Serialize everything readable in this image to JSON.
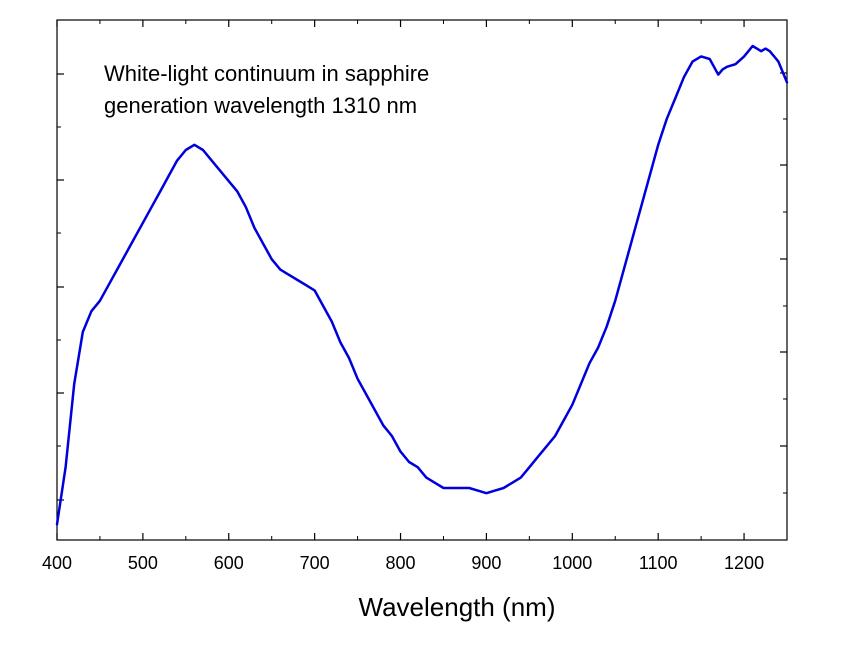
{
  "chart_data": {
    "type": "line",
    "title": "",
    "annotations": [
      "White-light continuum in sapphire",
      "generation wavelength 1310 nm"
    ],
    "xlabel": "Wavelength (nm)",
    "ylabel": "",
    "xlim": [
      400,
      1250
    ],
    "ylim": [
      0,
      1
    ],
    "x_ticks": [
      400,
      500,
      600,
      700,
      800,
      900,
      1000,
      1100,
      1200
    ],
    "x_tick_labels": [
      "400",
      "500",
      "600",
      "700",
      "800",
      "900",
      "1000",
      "1100",
      "1200"
    ],
    "y_tick_labels_shown": false,
    "grid": false,
    "legend": "none",
    "series": [
      {
        "color": "#0000dd",
        "x": [
          400,
          410,
          420,
          430,
          440,
          450,
          460,
          470,
          480,
          490,
          500,
          510,
          520,
          530,
          540,
          550,
          560,
          570,
          580,
          590,
          600,
          610,
          620,
          630,
          640,
          650,
          660,
          670,
          680,
          690,
          700,
          710,
          720,
          730,
          740,
          750,
          760,
          770,
          780,
          790,
          800,
          810,
          820,
          830,
          840,
          850,
          860,
          870,
          880,
          890,
          900,
          910,
          920,
          930,
          940,
          950,
          960,
          970,
          980,
          990,
          1000,
          1010,
          1020,
          1030,
          1040,
          1050,
          1060,
          1070,
          1080,
          1090,
          1100,
          1110,
          1120,
          1130,
          1140,
          1150,
          1160,
          1165,
          1170,
          1175,
          1180,
          1190,
          1200,
          1205,
          1210,
          1215,
          1220,
          1225,
          1230,
          1240,
          1250
        ],
        "y": [
          0.03,
          0.14,
          0.3,
          0.4,
          0.44,
          0.46,
          0.49,
          0.52,
          0.55,
          0.58,
          0.61,
          0.64,
          0.67,
          0.7,
          0.73,
          0.75,
          0.76,
          0.75,
          0.73,
          0.71,
          0.69,
          0.67,
          0.64,
          0.6,
          0.57,
          0.54,
          0.52,
          0.51,
          0.5,
          0.49,
          0.48,
          0.45,
          0.42,
          0.38,
          0.35,
          0.31,
          0.28,
          0.25,
          0.22,
          0.2,
          0.17,
          0.15,
          0.14,
          0.12,
          0.11,
          0.1,
          0.1,
          0.1,
          0.1,
          0.095,
          0.09,
          0.095,
          0.1,
          0.11,
          0.12,
          0.14,
          0.16,
          0.18,
          0.2,
          0.23,
          0.26,
          0.3,
          0.34,
          0.37,
          0.41,
          0.46,
          0.52,
          0.58,
          0.64,
          0.7,
          0.76,
          0.81,
          0.85,
          0.89,
          0.92,
          0.93,
          0.925,
          0.91,
          0.895,
          0.905,
          0.91,
          0.915,
          0.93,
          0.94,
          0.95,
          0.945,
          0.94,
          0.945,
          0.94,
          0.92,
          0.88
        ]
      }
    ]
  }
}
